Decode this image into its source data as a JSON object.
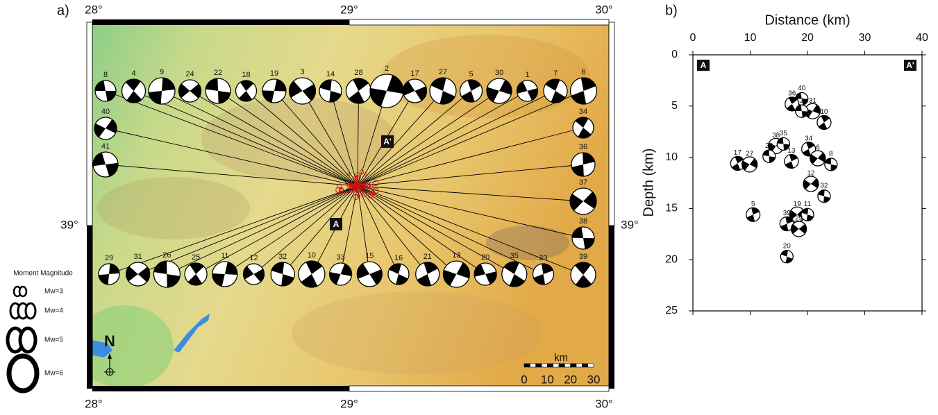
{
  "panel_a": {
    "label": "a)",
    "lon_ticks": [
      "28°",
      "29°",
      "30°"
    ],
    "lat_tick": "39°",
    "section_labels": [
      "A",
      "A'"
    ],
    "events": {
      "top": [
        "8",
        "4",
        "9",
        "24",
        "22",
        "18",
        "19",
        "3",
        "14",
        "28",
        "2",
        "17",
        "27",
        "5",
        "30",
        "1",
        "7",
        "6"
      ],
      "left": [
        "40",
        "41"
      ],
      "right": [
        "34",
        "36",
        "37",
        "38",
        "39"
      ],
      "bottom": [
        "29",
        "31",
        "26",
        "25",
        "11",
        "12",
        "32",
        "10",
        "33",
        "15",
        "16",
        "21",
        "13",
        "20",
        "35",
        "23"
      ]
    },
    "legend": {
      "title": "Moment Magnitude",
      "items": [
        "Mw=3",
        "Mw=4",
        "Mw=5",
        "Mw=6"
      ]
    },
    "north": "N",
    "scale": {
      "unit": "km",
      "ticks": [
        0,
        10,
        20,
        30
      ]
    }
  },
  "panel_b": {
    "label": "b)",
    "chart_data": {
      "type": "scatter",
      "x_label": "Distance (km)",
      "y_label": "Depth (km)",
      "xlim": [
        0,
        40
      ],
      "ylim": [
        0,
        25
      ],
      "xticks": [
        0,
        10,
        20,
        30,
        40
      ],
      "yticks": [
        0,
        5,
        10,
        15,
        20,
        25
      ],
      "y_inverted": true,
      "x_axis_position": "top",
      "section_labels": [
        "A",
        "A'"
      ],
      "point_labels": [
        "40",
        "36",
        "31",
        "2",
        "10",
        "38",
        "35",
        "17",
        "27",
        "26",
        "34",
        "6",
        "8",
        "13",
        "12",
        "32",
        "5",
        "19",
        "11",
        "39",
        "29",
        "20"
      ],
      "x": [
        19.0,
        17.3,
        20.9,
        19.0,
        22.9,
        14.5,
        15.8,
        7.8,
        9.9,
        13.3,
        20.2,
        21.8,
        24.1,
        17.2,
        20.6,
        22.9,
        10.5,
        18.2,
        20.0,
        16.4,
        18.5,
        16.4
      ],
      "values": [
        4.3,
        4.8,
        5.5,
        5.5,
        6.6,
        8.9,
        8.7,
        10.6,
        10.7,
        9.9,
        9.2,
        10.1,
        10.7,
        10.4,
        12.6,
        13.8,
        15.6,
        15.6,
        15.6,
        16.5,
        17.0,
        19.7
      ]
    }
  }
}
